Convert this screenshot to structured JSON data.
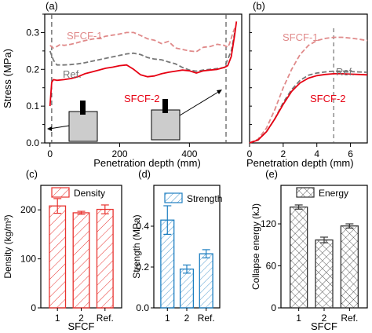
{
  "colors": {
    "axis": "#000000",
    "sfcf1": "#e08a8a",
    "ref": "#777777",
    "sfcf2": "#e60012",
    "dashed_marker": "#555555",
    "density": "#e8332f",
    "strength": "#1e7fc1",
    "energy": "#333333",
    "specimen_fill": "#cccccc",
    "specimen_stroke": "#000000"
  },
  "chart_data": [
    {
      "id": "a",
      "panel_label": "(a)",
      "type": "line",
      "xlabel": "Penetration depth (mm)",
      "ylabel": "Stress (MPa)",
      "xlim": [
        -15,
        550
      ],
      "ylim": [
        0.0,
        0.35
      ],
      "xticks": [
        0,
        200,
        400
      ],
      "xtick_labels": [
        "0",
        "200",
        "400"
      ],
      "yticks": [
        0.0,
        0.05,
        0.1,
        0.15,
        0.2,
        0.25,
        0.3,
        0.35
      ],
      "ytick_labels": [
        "0.0",
        "",
        "0.1",
        "",
        "0.2",
        "",
        "0.3",
        ""
      ],
      "vlines": [
        5,
        505
      ],
      "series": [
        {
          "name": "SFCF-1",
          "label": "SFCF-1",
          "style": "dashed",
          "x": [
            0,
            10,
            20,
            30,
            40,
            60,
            80,
            100,
            120,
            140,
            160,
            180,
            200,
            220,
            240,
            260,
            280,
            300,
            320,
            340,
            360,
            380,
            400,
            420,
            440,
            460,
            480,
            500,
            510,
            515,
            520,
            525,
            530
          ],
          "y": [
            0.265,
            0.258,
            0.262,
            0.268,
            0.265,
            0.268,
            0.273,
            0.278,
            0.282,
            0.285,
            0.29,
            0.293,
            0.296,
            0.3,
            0.3,
            0.292,
            0.283,
            0.279,
            0.27,
            0.276,
            0.258,
            0.254,
            0.25,
            0.248,
            0.26,
            0.262,
            0.268,
            0.265,
            0.26,
            0.27,
            0.285,
            0.3,
            0.312
          ]
        },
        {
          "name": "Ref.",
          "label": "Ref.",
          "style": "dashed",
          "x": [
            0,
            10,
            20,
            40,
            60,
            80,
            100,
            120,
            140,
            160,
            180,
            200,
            220,
            240,
            260,
            280,
            300,
            320,
            340,
            360,
            380,
            400,
            420,
            440,
            460,
            480,
            500,
            520,
            530
          ],
          "y": [
            0.25,
            0.225,
            0.212,
            0.212,
            0.213,
            0.215,
            0.218,
            0.222,
            0.226,
            0.23,
            0.234,
            0.238,
            0.242,
            0.244,
            0.24,
            0.232,
            0.228,
            0.226,
            0.22,
            0.215,
            0.205,
            0.198,
            0.195,
            0.198,
            0.2,
            0.202,
            0.205,
            0.25,
            0.3
          ]
        },
        {
          "name": "SFCF-2",
          "label": "SFCF-2",
          "style": "solid",
          "x": [
            0,
            5,
            10,
            20,
            40,
            60,
            80,
            100,
            120,
            140,
            160,
            180,
            200,
            220,
            240,
            260,
            280,
            300,
            320,
            340,
            360,
            380,
            400,
            420,
            440,
            460,
            480,
            500,
            510,
            520,
            525,
            530,
            535
          ],
          "y": [
            0.1,
            0.165,
            0.172,
            0.17,
            0.172,
            0.175,
            0.18,
            0.188,
            0.193,
            0.198,
            0.203,
            0.206,
            0.21,
            0.212,
            0.2,
            0.185,
            0.18,
            0.182,
            0.188,
            0.192,
            0.195,
            0.198,
            0.196,
            0.19,
            0.196,
            0.198,
            0.2,
            0.205,
            0.21,
            0.235,
            0.265,
            0.295,
            0.33
          ]
        }
      ]
    },
    {
      "id": "b",
      "panel_label": "(b)",
      "type": "line",
      "xlabel": "Penetration depth (mm)",
      "ylabel": "",
      "xlim": [
        0,
        7
      ],
      "ylim": [
        0.0,
        0.35
      ],
      "xticks": [
        0,
        2,
        4,
        6
      ],
      "xtick_labels": [
        "0",
        "2",
        "4",
        "6"
      ],
      "yticks": [
        0.0,
        0.05,
        0.1,
        0.15,
        0.2,
        0.25,
        0.3,
        0.35
      ],
      "vlines": [
        5
      ],
      "series": [
        {
          "name": "SFCF-1",
          "label": "SFCF-1",
          "style": "dashed",
          "x": [
            0,
            0.5,
            1,
            1.5,
            2,
            2.5,
            3,
            3.5,
            4,
            4.5,
            5,
            5.5,
            6,
            6.5,
            7
          ],
          "y": [
            0.0,
            0.01,
            0.04,
            0.09,
            0.15,
            0.2,
            0.24,
            0.265,
            0.278,
            0.284,
            0.287,
            0.287,
            0.285,
            0.282,
            0.278
          ]
        },
        {
          "name": "Ref.",
          "label": "Ref.",
          "style": "dashed",
          "x": [
            0,
            0.5,
            1,
            1.5,
            2,
            2.5,
            3,
            3.5,
            4,
            4.5,
            5,
            5.5,
            6,
            6.5,
            7
          ],
          "y": [
            0.0,
            0.008,
            0.03,
            0.065,
            0.11,
            0.145,
            0.17,
            0.184,
            0.19,
            0.193,
            0.195,
            0.195,
            0.194,
            0.193,
            0.192
          ]
        },
        {
          "name": "SFCF-2",
          "label": "SFCF-2",
          "style": "solid",
          "x": [
            0,
            0.5,
            1,
            1.5,
            2,
            2.5,
            3,
            3.5,
            4,
            4.5,
            5,
            5.5,
            6,
            6.5,
            7
          ],
          "y": [
            0.0,
            0.008,
            0.03,
            0.065,
            0.105,
            0.14,
            0.163,
            0.176,
            0.183,
            0.186,
            0.188,
            0.188,
            0.187,
            0.186,
            0.185
          ]
        }
      ]
    },
    {
      "id": "c",
      "panel_label": "(c)",
      "type": "bar",
      "xlabel": "SFCF",
      "ylabel": "Density (kg/m³)",
      "legend": "Density",
      "categories": [
        "1",
        "2",
        "Ref."
      ],
      "values": [
        208,
        194,
        201
      ],
      "errors": [
        15,
        3,
        9
      ],
      "ylim": [
        0,
        250
      ],
      "yticks": [
        0,
        100,
        200
      ]
    },
    {
      "id": "d",
      "panel_label": "(d)",
      "type": "bar",
      "xlabel": "",
      "ylabel": "Strength (MPa)",
      "legend": "Strength",
      "categories": [
        "1",
        "2",
        "Ref."
      ],
      "values": [
        0.43,
        0.19,
        0.265
      ],
      "errors": [
        0.07,
        0.02,
        0.02
      ],
      "ylim": [
        0.0,
        0.6
      ],
      "yticks": [
        0.0,
        0.2,
        0.4
      ]
    },
    {
      "id": "e",
      "panel_label": "(e)",
      "type": "bar",
      "xlabel": "SFCF",
      "ylabel": "Collapse energy (kJ)",
      "legend": "Energy",
      "categories": [
        "1",
        "2",
        "Ref."
      ],
      "values": [
        144,
        97,
        117
      ],
      "errors": [
        3,
        4,
        3
      ],
      "ylim": [
        0,
        175
      ],
      "yticks": [
        0,
        60,
        120
      ]
    }
  ]
}
